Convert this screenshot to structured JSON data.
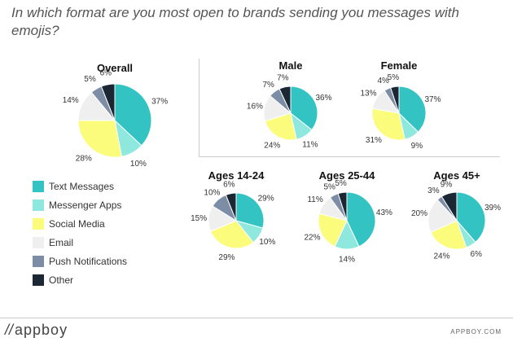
{
  "title": "In which format are you most open to brands sending you messages with emojis?",
  "colors": {
    "text_messages": "#33c3c3",
    "messenger_apps": "#8fe8de",
    "social_media": "#fbfb7c",
    "email": "#efefef",
    "push_notifications": "#7d8da5",
    "other": "#1c2734"
  },
  "legend": [
    {
      "key": "text_messages",
      "label": "Text Messages"
    },
    {
      "key": "messenger_apps",
      "label": "Messenger Apps"
    },
    {
      "key": "social_media",
      "label": "Social Media"
    },
    {
      "key": "email",
      "label": "Email"
    },
    {
      "key": "push_notifications",
      "label": "Push Notifications"
    },
    {
      "key": "other",
      "label": "Other"
    }
  ],
  "chart_data": [
    {
      "type": "pie",
      "title": "Overall",
      "categories": [
        "Text Messages",
        "Messenger Apps",
        "Social Media",
        "Email",
        "Push Notifications",
        "Other"
      ],
      "values": [
        37,
        10,
        28,
        14,
        5,
        6
      ],
      "labels": [
        "37%",
        "10%",
        "28%",
        "14%",
        "5%",
        "6%"
      ]
    },
    {
      "type": "pie",
      "title": "Male",
      "categories": [
        "Text Messages",
        "Messenger Apps",
        "Social Media",
        "Email",
        "Push Notifications",
        "Other"
      ],
      "values": [
        36,
        11,
        24,
        16,
        7,
        7
      ],
      "labels": [
        "36%",
        "11%",
        "24%",
        "16%",
        "7%",
        "7%"
      ]
    },
    {
      "type": "pie",
      "title": "Female",
      "categories": [
        "Text Messages",
        "Messenger Apps",
        "Social Media",
        "Email",
        "Push Notifications",
        "Other"
      ],
      "values": [
        37,
        9,
        31,
        13,
        4,
        5
      ],
      "labels": [
        "37%",
        "9%",
        "31%",
        "13%",
        "4%",
        "5%"
      ]
    },
    {
      "type": "pie",
      "title": "Ages 14-24",
      "categories": [
        "Text Messages",
        "Messenger Apps",
        "Social Media",
        "Email",
        "Push Notifications",
        "Other"
      ],
      "values": [
        29,
        10,
        29,
        15,
        10,
        6
      ],
      "labels": [
        "29%",
        "10%",
        "29%",
        "15%",
        "10%",
        "6%"
      ]
    },
    {
      "type": "pie",
      "title": "Ages 25-44",
      "categories": [
        "Text Messages",
        "Messenger Apps",
        "Social Media",
        "Email",
        "Push Notifications",
        "Other"
      ],
      "values": [
        43,
        14,
        22,
        11,
        5,
        5
      ],
      "labels": [
        "43%",
        "14%",
        "22%",
        "11%",
        "5%",
        "5%"
      ]
    },
    {
      "type": "pie",
      "title": "Ages 45+",
      "categories": [
        "Text Messages",
        "Messenger Apps",
        "Social Media",
        "Email",
        "Push Notifications",
        "Other"
      ],
      "values": [
        39,
        6,
        24,
        20,
        3,
        9
      ],
      "labels": [
        "39%",
        "6%",
        "24%",
        "20%",
        "3%",
        "9%"
      ]
    }
  ],
  "footer": {
    "brand_mark": "//",
    "brand_name": "appboy",
    "url": "APPBOY.COM"
  }
}
